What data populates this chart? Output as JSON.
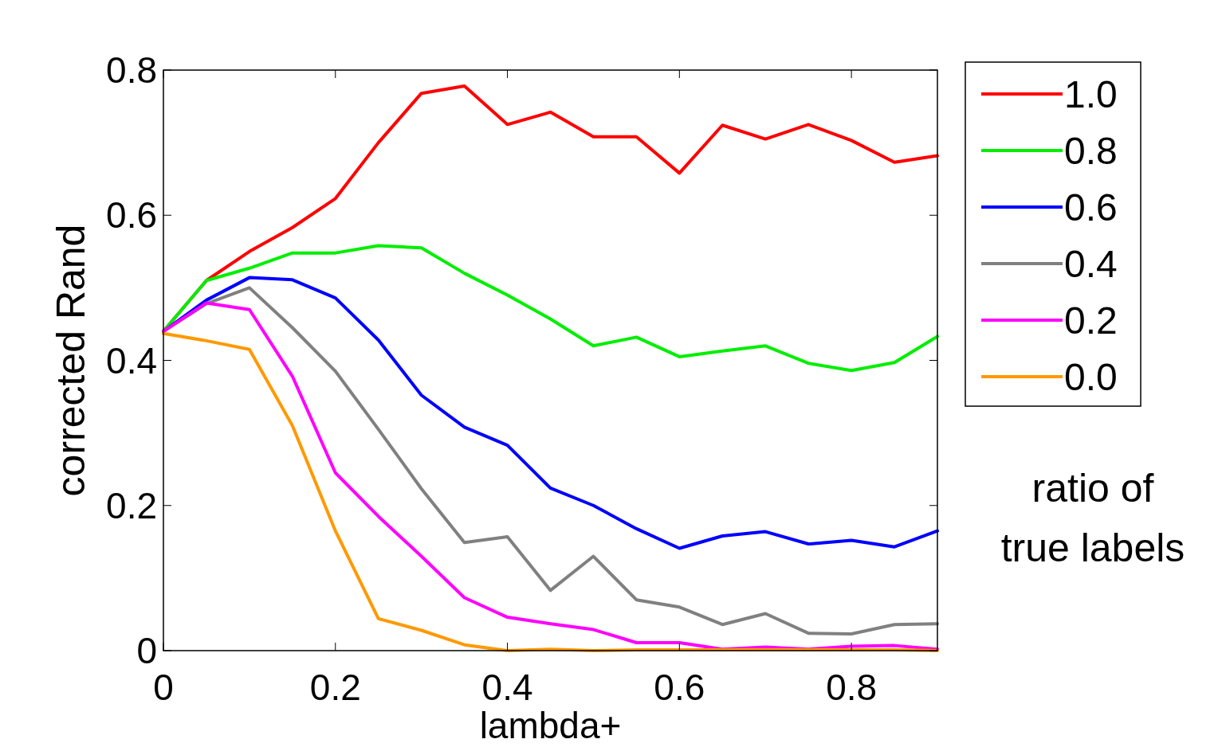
{
  "chart_data": {
    "type": "line",
    "xlabel": "lambda+",
    "ylabel": "corrected Rand",
    "legend_title": "ratio of true labels",
    "legend": "right",
    "grid": false,
    "marker": "none",
    "line_style": "solid",
    "x": [
      0,
      0.05,
      0.1,
      0.15,
      0.2,
      0.25,
      0.3,
      0.35,
      0.4,
      0.45,
      0.5,
      0.55,
      0.6,
      0.65,
      0.7,
      0.75,
      0.8,
      0.85,
      0.9
    ],
    "xlim": [
      0,
      0.9
    ],
    "xticks": [
      0,
      0.2,
      0.4,
      0.6,
      0.8
    ],
    "ylim": [
      0,
      0.8
    ],
    "yticks": [
      0,
      0.2,
      0.4,
      0.6,
      0.8
    ],
    "series": [
      {
        "name": "1.0",
        "color": "#ff0000",
        "values": [
          0.44,
          0.51,
          0.55,
          0.583,
          0.623,
          0.7,
          0.768,
          0.778,
          0.725,
          0.742,
          0.708,
          0.708,
          0.658,
          0.724,
          0.705,
          0.725,
          0.703,
          0.673,
          0.682
        ]
      },
      {
        "name": "0.8",
        "color": "#00ee00",
        "values": [
          0.44,
          0.51,
          0.527,
          0.548,
          0.548,
          0.558,
          0.555,
          0.52,
          0.49,
          0.457,
          0.42,
          0.432,
          0.405,
          0.413,
          0.42,
          0.396,
          0.386,
          0.397,
          0.433
        ]
      },
      {
        "name": "0.6",
        "color": "#0000ff",
        "values": [
          0.44,
          0.483,
          0.514,
          0.511,
          0.486,
          0.428,
          0.352,
          0.308,
          0.283,
          0.224,
          0.2,
          0.168,
          0.141,
          0.158,
          0.164,
          0.147,
          0.152,
          0.143,
          0.165
        ]
      },
      {
        "name": "0.4",
        "color": "#808080",
        "values": [
          0.44,
          0.478,
          0.5,
          0.445,
          0.385,
          0.305,
          0.223,
          0.149,
          0.157,
          0.083,
          0.13,
          0.07,
          0.06,
          0.036,
          0.051,
          0.024,
          0.023,
          0.036,
          0.037
        ]
      },
      {
        "name": "0.2",
        "color": "#ff00ff",
        "values": [
          0.44,
          0.479,
          0.47,
          0.378,
          0.245,
          0.185,
          0.13,
          0.073,
          0.046,
          0.037,
          0.029,
          0.011,
          0.011,
          0.002,
          0.005,
          0.002,
          0.006,
          0.007,
          0.002
        ]
      },
      {
        "name": "0.0",
        "color": "#ff9900",
        "values": [
          0.437,
          0.427,
          0.415,
          0.31,
          0.165,
          0.044,
          0.028,
          0.008,
          0,
          0.002,
          0,
          0.001,
          0.001,
          0.001,
          0.001,
          0.001,
          0.001,
          0.001,
          0
        ]
      }
    ]
  }
}
